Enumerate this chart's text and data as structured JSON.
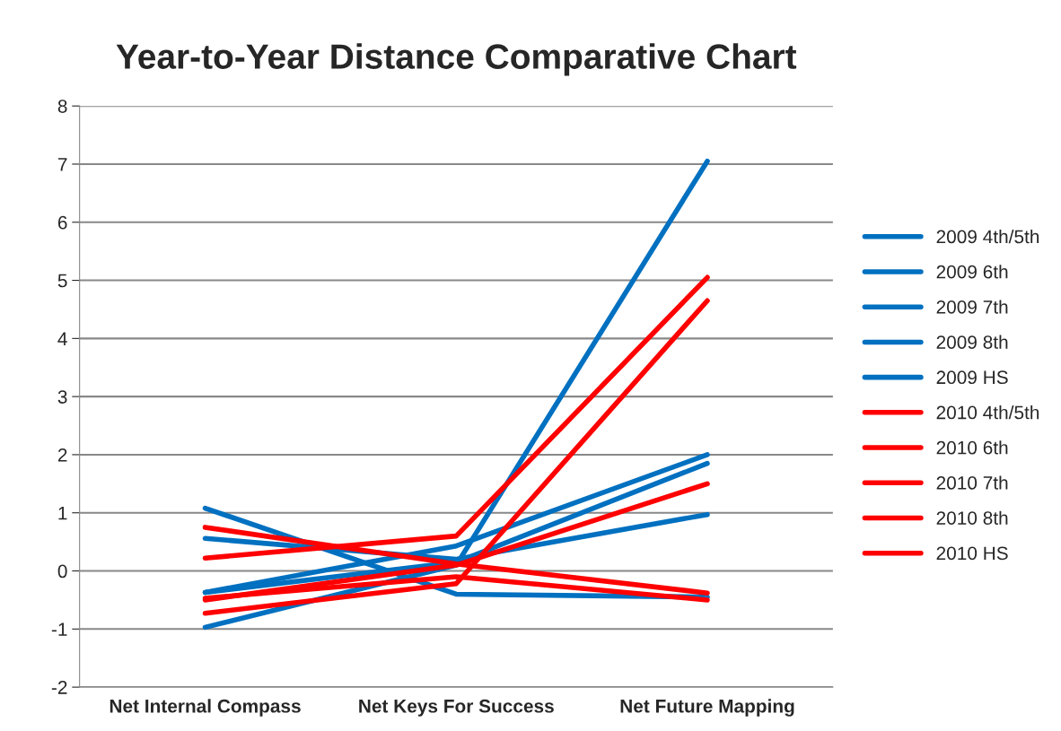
{
  "chart_data": {
    "type": "line",
    "title": "Year-to-Year Distance Comparative Chart",
    "categories": [
      "Net Internal Compass",
      "Net Keys For Success",
      "Net Future Mapping"
    ],
    "series": [
      {
        "name": "2009 4th/5th",
        "color": "#0070c0",
        "values": [
          1.08,
          -0.4,
          -0.45
        ]
      },
      {
        "name": "2009 6th",
        "color": "#0070c0",
        "values": [
          0.56,
          0.2,
          0.97
        ]
      },
      {
        "name": "2009 7th",
        "color": "#0070c0",
        "values": [
          -0.37,
          0.43,
          2.0
        ]
      },
      {
        "name": "2009 8th",
        "color": "#0070c0",
        "values": [
          -0.97,
          0.1,
          7.05
        ]
      },
      {
        "name": "2009 HS",
        "color": "#0070c0",
        "values": [
          -0.37,
          0.15,
          1.85
        ]
      },
      {
        "name": "2010 4th/5th",
        "color": "#ff0000",
        "values": [
          0.22,
          0.6,
          5.05
        ]
      },
      {
        "name": "2010 6th",
        "color": "#ff0000",
        "values": [
          0.75,
          0.12,
          -0.38
        ]
      },
      {
        "name": "2010 7th",
        "color": "#ff0000",
        "values": [
          -0.73,
          -0.22,
          4.65
        ]
      },
      {
        "name": "2010 8th",
        "color": "#ff0000",
        "values": [
          -0.5,
          0.1,
          1.5
        ]
      },
      {
        "name": "2010 HS",
        "color": "#ff0000",
        "values": [
          -0.47,
          -0.1,
          -0.5
        ]
      }
    ],
    "ylim": [
      -2,
      8
    ],
    "yticks": [
      -2,
      -1,
      0,
      1,
      2,
      3,
      4,
      5,
      6,
      7,
      8
    ],
    "grid": "y",
    "legend": "right",
    "marker": "none",
    "line_style": "solid"
  }
}
